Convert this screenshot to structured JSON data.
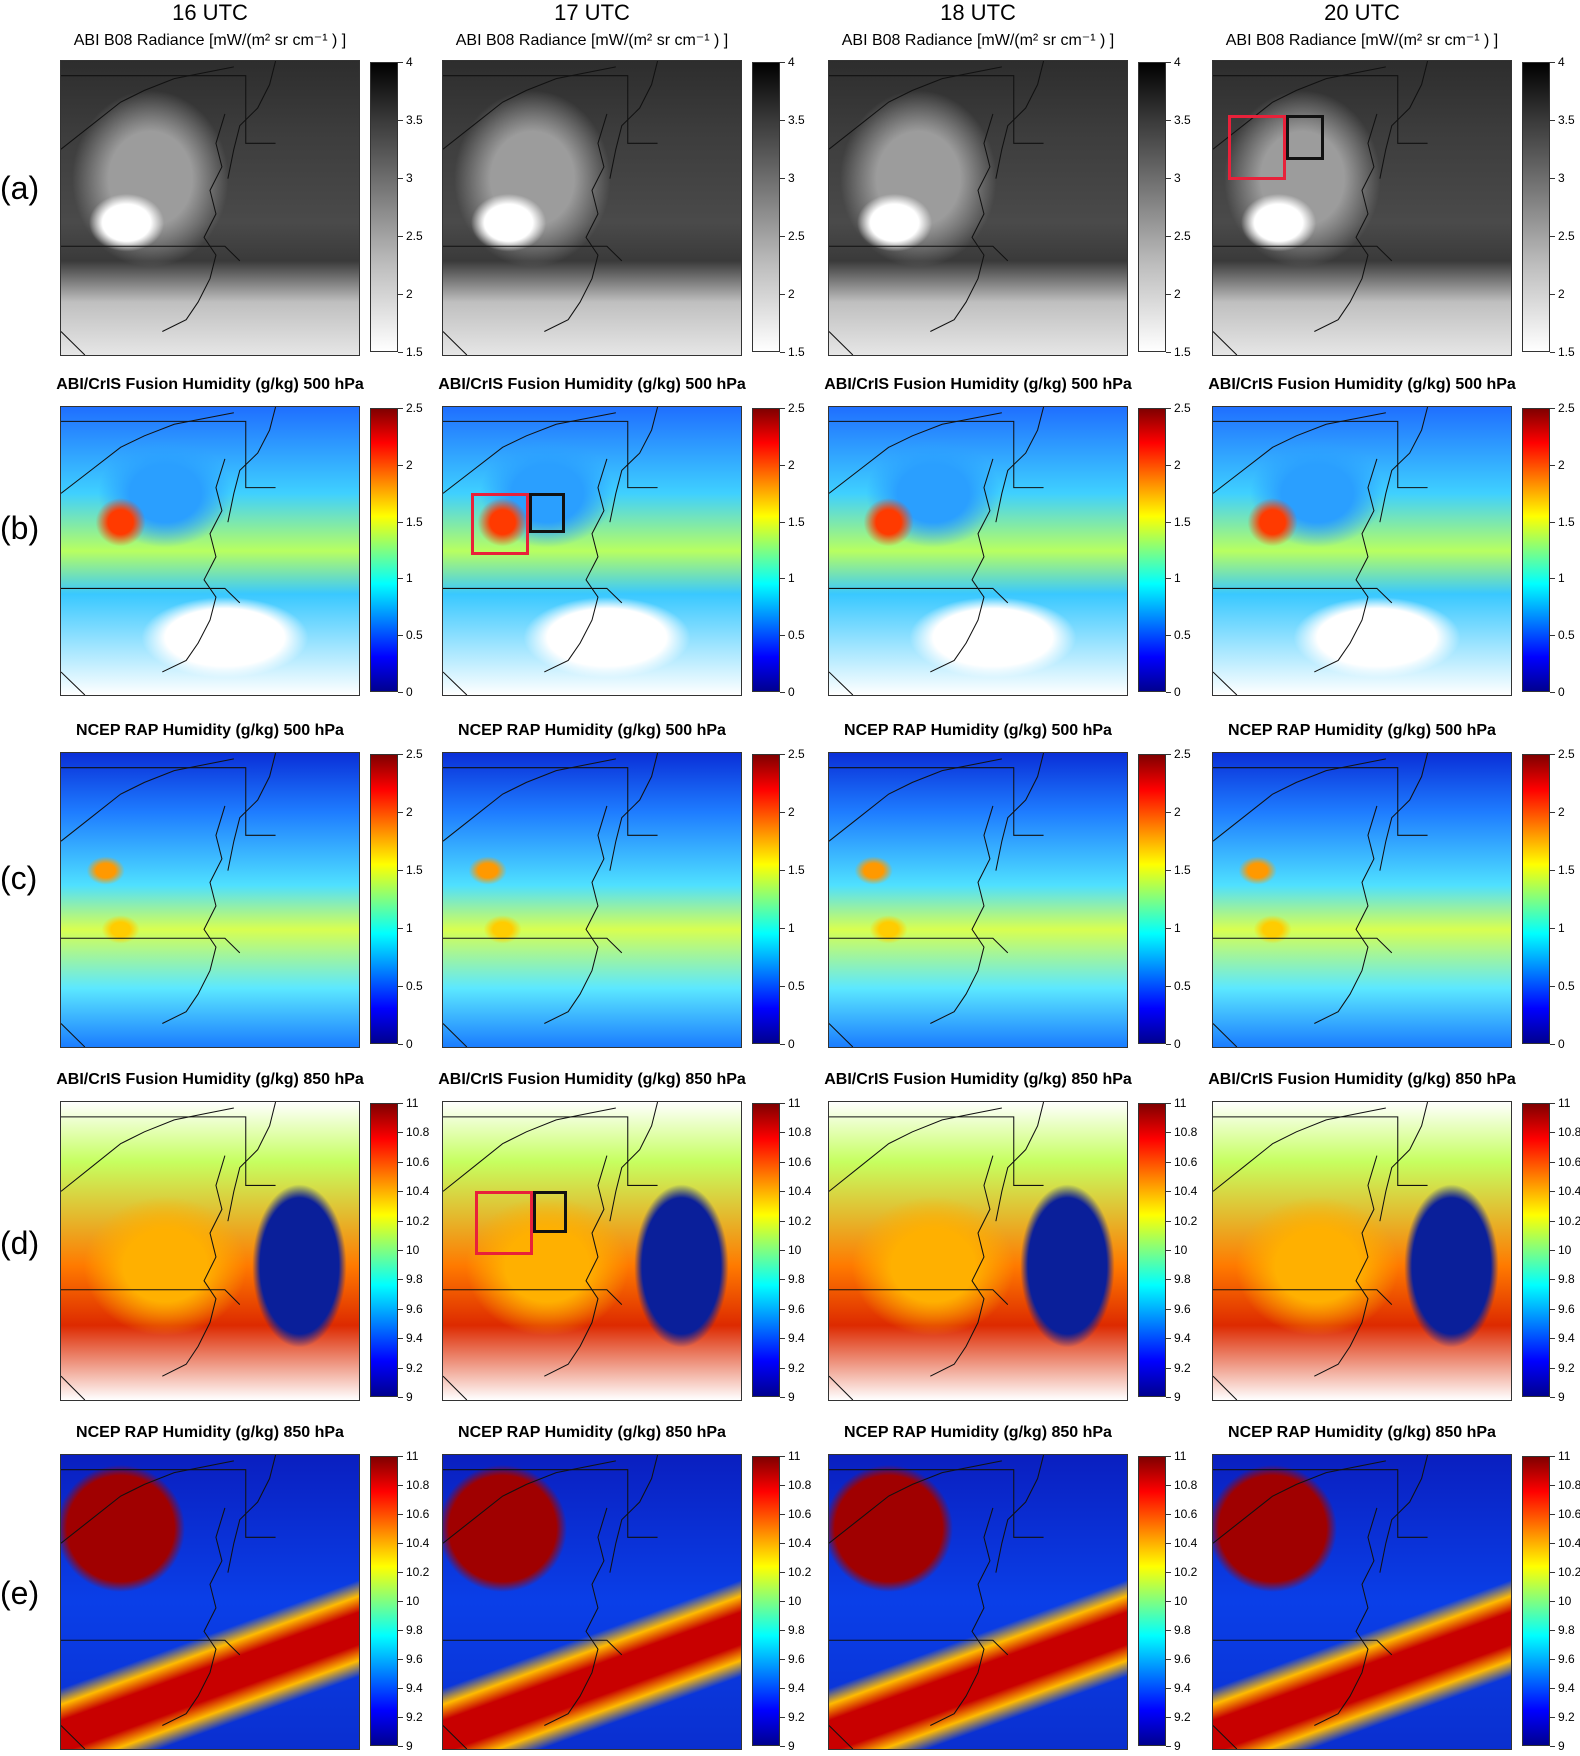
{
  "columns": [
    "16 UTC",
    "17 UTC",
    "18 UTC",
    "20 UTC"
  ],
  "rows": [
    {
      "label": "(a)",
      "title": "ABI B08 Radiance [mW/(m² sr cm⁻¹ ) ]",
      "bold": false,
      "bg": "sat",
      "colormap": "gray",
      "ticks": [
        "4",
        "3.5",
        "3",
        "2.5",
        "2",
        "1.5"
      ]
    },
    {
      "label": "(b)",
      "title": "ABI/CrIS Fusion Humidity (g/kg) 500 hPa",
      "bold": true,
      "bg": "fus5",
      "colormap": "jet",
      "ticks": [
        "2.5",
        "2",
        "1.5",
        "1",
        "0.5",
        "0"
      ]
    },
    {
      "label": "(c)",
      "title": "NCEP RAP Humidity (g/kg) 500 hPa",
      "bold": true,
      "bg": "rap5",
      "colormap": "jet",
      "ticks": [
        "2.5",
        "2",
        "1.5",
        "1",
        "0.5",
        "0"
      ]
    },
    {
      "label": "(d)",
      "title": "ABI/CrIS Fusion Humidity (g/kg) 850 hPa",
      "bold": true,
      "bg": "fus8",
      "colormap": "jet",
      "ticks": [
        "11",
        "10.8",
        "10.6",
        "10.4",
        "10.2",
        "10",
        "9.8",
        "9.6",
        "9.4",
        "9.2",
        "9"
      ]
    },
    {
      "label": "(e)",
      "title": "NCEP RAP Humidity (g/kg) 850 hPa",
      "bold": true,
      "bg": "rap8",
      "colormap": "jet",
      "ticks": [
        "11",
        "10.8",
        "10.6",
        "10.4",
        "10.2",
        "10",
        "9.8",
        "9.6",
        "9.4",
        "9.2",
        "9"
      ]
    }
  ]
}
